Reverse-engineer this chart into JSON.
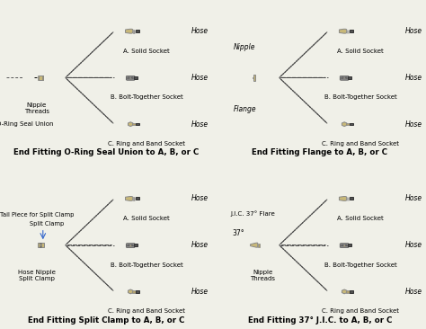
{
  "bg_color": "#f0f0e8",
  "border_color": "#888888",
  "title_fontsize": 8.5,
  "label_fontsize": 6.5,
  "panels": [
    {
      "title": "End Fitting O-Ring Seal Union to A, B, or C",
      "fitting_label": "O-Ring Seal Union",
      "fitting_sublabel": "Nipple\nThreads",
      "parts": [
        "A. Solid Socket",
        "B. Bolt-Together Socket",
        "C. Ring and Band Socket"
      ]
    },
    {
      "title": "End Fitting Flange to A, B, or C",
      "fitting_label": "Flange",
      "fitting_sublabel": "Nipple",
      "parts": [
        "A. Solid Socket",
        "B. Bolt-Together Socket",
        "C. Ring and Band Socket"
      ]
    },
    {
      "title": "End Fitting Split Clamp to A, B, or C",
      "fitting_label": "Hose Nipple\nSplit Clamp",
      "fitting_sublabel": "Tail Piece for Split Clamp\nSplit Clamp",
      "parts": [
        "A. Solid Socket",
        "B. Bolt-Together Socket",
        "C. Ring and Band Socket"
      ]
    },
    {
      "title": "End Fitting 37° J.I.C. to A, B, or C",
      "fitting_label": "J.I.C. 37° Flare",
      "fitting_sublabel": "Nipple\nThreads",
      "angle_label": "37°",
      "parts": [
        "A. Solid Socket",
        "B. Bolt-Together Socket",
        "C. Ring and Band Socket"
      ]
    }
  ],
  "part_colors": {
    "solid_socket_head": "#c8b878",
    "bolt_socket_body": "#606060",
    "ring_socket_head": "#c8b878",
    "hose_color": "#505050",
    "fitting_color": "#c8b878",
    "bolt_clamp_color": "#404040"
  }
}
